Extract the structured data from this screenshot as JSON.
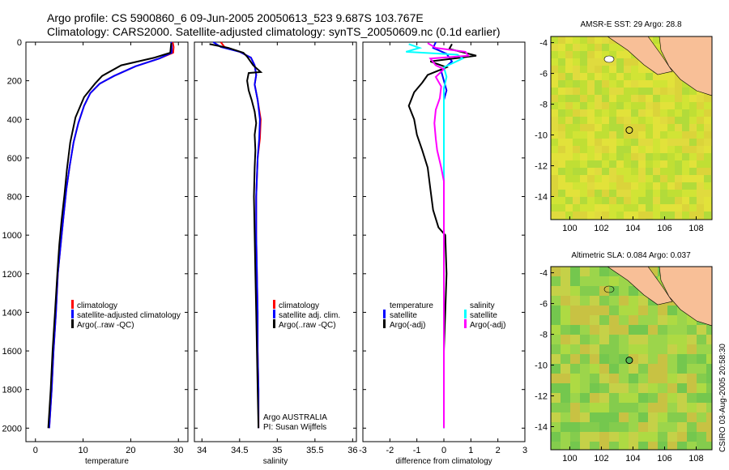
{
  "title": {
    "line1": "Argo profile: CS 5900860_6 09-Jun-2005 20050613_523 9.687S 103.767E",
    "line2": "Climatology: CARS2000. Satellite-adjusted climatology: synTS_20050609.nc (0.1d earlier)"
  },
  "depth_ticks": [
    "0",
    "200",
    "400",
    "600",
    "800",
    "1000",
    "1200",
    "1400",
    "1600",
    "1800",
    "2000"
  ],
  "credit": "CSIRO 03-Aug-2005 20:58:30",
  "chart_data": [
    {
      "type": "line",
      "id": "temperature",
      "xlabel": "temperature",
      "xlim": [
        -2,
        32
      ],
      "ylim": [
        2070,
        0
      ],
      "xticks": [
        "0",
        "10",
        "20",
        "30"
      ],
      "legend": [
        "climatology",
        "satellite-adjusted climatology",
        "Argo(..raw -QC)"
      ],
      "series": [
        {
          "name": "climatology",
          "color": "#ff0000",
          "points": [
            [
              28.8,
              0
            ],
            [
              29.0,
              25
            ],
            [
              28.9,
              55
            ],
            [
              26,
              85
            ],
            [
              21,
              125
            ],
            [
              16.5,
              175
            ],
            [
              13.5,
              215
            ],
            [
              11.5,
              265
            ],
            [
              10.2,
              330
            ],
            [
              9,
              420
            ],
            [
              8,
              520
            ],
            [
              7.2,
              640
            ],
            [
              6.5,
              760
            ],
            [
              5.9,
              900
            ],
            [
              5.3,
              1050
            ],
            [
              4.7,
              1200
            ],
            [
              4.3,
              1400
            ],
            [
              3.8,
              1600
            ],
            [
              3.4,
              1800
            ],
            [
              2.9,
              2000
            ]
          ]
        },
        {
          "name": "satellite-adjusted climatology",
          "color": "#0000ff",
          "points": [
            [
              28.5,
              0
            ],
            [
              28.6,
              25
            ],
            [
              28.6,
              55
            ],
            [
              26,
              85
            ],
            [
              21,
              125
            ],
            [
              16.5,
              175
            ],
            [
              13.5,
              215
            ],
            [
              11.5,
              265
            ],
            [
              10.2,
              330
            ],
            [
              9,
              420
            ],
            [
              8,
              520
            ],
            [
              7.2,
              640
            ],
            [
              6.5,
              760
            ],
            [
              5.9,
              900
            ],
            [
              5.3,
              1050
            ],
            [
              4.7,
              1200
            ],
            [
              4.3,
              1400
            ],
            [
              3.8,
              1600
            ],
            [
              3.4,
              1800
            ],
            [
              2.9,
              2000
            ]
          ]
        },
        {
          "name": "Argo(..raw -QC)",
          "color": "#000000",
          "points": [
            [
              28.5,
              5
            ],
            [
              28.4,
              30
            ],
            [
              28.3,
              55
            ],
            [
              25,
              80
            ],
            [
              18,
              120
            ],
            [
              14,
              175
            ],
            [
              12.5,
              215
            ],
            [
              10.2,
              285
            ],
            [
              8.4,
              390
            ],
            [
              7.3,
              520
            ],
            [
              6.6,
              660
            ],
            [
              6.1,
              790
            ],
            [
              5.5,
              920
            ],
            [
              5,
              1050
            ],
            [
              4.6,
              1200
            ],
            [
              4.1,
              1400
            ],
            [
              3.6,
              1600
            ],
            [
              3.2,
              1800
            ],
            [
              2.7,
              2000
            ]
          ]
        }
      ]
    },
    {
      "type": "line",
      "id": "salinity",
      "xlabel": "salinity",
      "xlim": [
        33.9,
        36.05
      ],
      "ylim": [
        2070,
        0
      ],
      "xticks": [
        "34",
        "34.5",
        "35",
        "35.5",
        "36"
      ],
      "legend": [
        "climatology",
        "satellite adj. clim.",
        "Argo(..raw -QC)"
      ],
      "annotation": [
        "Argo AUSTRALIA",
        "PI: Susan Wijffels"
      ],
      "series": [
        {
          "name": "climatology",
          "color": "#ff0000",
          "points": [
            [
              34.25,
              0
            ],
            [
              34.3,
              25
            ],
            [
              34.5,
              50
            ],
            [
              34.65,
              80
            ],
            [
              34.7,
              120
            ],
            [
              34.72,
              170
            ],
            [
              34.7,
              220
            ],
            [
              34.74,
              300
            ],
            [
              34.78,
              400
            ],
            [
              34.77,
              500
            ],
            [
              34.74,
              600
            ],
            [
              34.73,
              700
            ],
            [
              34.72,
              800
            ],
            [
              34.72,
              1000
            ],
            [
              34.73,
              1200
            ],
            [
              34.74,
              1400
            ],
            [
              34.74,
              1600
            ],
            [
              34.75,
              1800
            ],
            [
              34.75,
              2000
            ]
          ]
        },
        {
          "name": "satellite adj. clim.",
          "color": "#0000ff",
          "points": [
            [
              34.15,
              0
            ],
            [
              34.25,
              25
            ],
            [
              34.5,
              50
            ],
            [
              34.65,
              80
            ],
            [
              34.7,
              120
            ],
            [
              34.72,
              170
            ],
            [
              34.7,
              220
            ],
            [
              34.74,
              300
            ],
            [
              34.77,
              400
            ],
            [
              34.76,
              500
            ],
            [
              34.74,
              600
            ],
            [
              34.73,
              700
            ],
            [
              34.72,
              800
            ],
            [
              34.72,
              1000
            ],
            [
              34.73,
              1200
            ],
            [
              34.74,
              1400
            ],
            [
              34.74,
              1600
            ],
            [
              34.75,
              1800
            ],
            [
              34.75,
              2000
            ]
          ]
        },
        {
          "name": "Argo(..raw -QC)",
          "color": "#000000",
          "points": [
            [
              34.1,
              10
            ],
            [
              34.35,
              30
            ],
            [
              34.55,
              55
            ],
            [
              34.6,
              75
            ],
            [
              34.68,
              120
            ],
            [
              34.78,
              155
            ],
            [
              34.62,
              160
            ],
            [
              34.6,
              200
            ],
            [
              34.62,
              250
            ],
            [
              34.66,
              300
            ],
            [
              34.7,
              360
            ],
            [
              34.72,
              420
            ],
            [
              34.7,
              480
            ],
            [
              34.71,
              560
            ],
            [
              34.7,
              650
            ],
            [
              34.69,
              800
            ],
            [
              34.7,
              1000
            ],
            [
              34.71,
              1200
            ],
            [
              34.72,
              1400
            ],
            [
              34.73,
              1600
            ],
            [
              34.74,
              1800
            ],
            [
              34.75,
              2000
            ]
          ]
        }
      ]
    },
    {
      "type": "line",
      "id": "difference",
      "xlabel": "difference from climatology",
      "xlim": [
        -3,
        3
      ],
      "ylim": [
        2070,
        0
      ],
      "xticks": [
        "-3",
        "-2",
        "-1",
        "0",
        "1",
        "2",
        "3"
      ],
      "legend_left": [
        "temperature",
        "satellite",
        "Argo(-adj)"
      ],
      "legend_right": [
        "salinity",
        "satellite",
        "Argo(-adj)"
      ],
      "series": [
        {
          "name": "temperature satellite",
          "color": "#0000ff",
          "points": [
            [
              -0.3,
              0
            ],
            [
              -0.4,
              30
            ],
            [
              0.1,
              60
            ],
            [
              0.3,
              100
            ],
            [
              -0.1,
              150
            ],
            [
              0,
              200
            ],
            [
              0.1,
              250
            ],
            [
              0,
              300
            ],
            [
              0,
              400
            ],
            [
              0,
              600
            ],
            [
              0,
              800
            ],
            [
              0,
              1000
            ],
            [
              0,
              1400
            ],
            [
              0,
              2000
            ]
          ]
        },
        {
          "name": "temperature Argo(-adj)",
          "color": "#000000",
          "points": [
            [
              0.3,
              10
            ],
            [
              0.2,
              35
            ],
            [
              1.2,
              70
            ],
            [
              -0.5,
              100
            ],
            [
              0.1,
              130
            ],
            [
              -0.6,
              170
            ],
            [
              -0.8,
              210
            ],
            [
              -1.1,
              260
            ],
            [
              -1.3,
              330
            ],
            [
              -1.1,
              400
            ],
            [
              -1.0,
              480
            ],
            [
              -0.8,
              560
            ],
            [
              -0.6,
              650
            ],
            [
              -0.5,
              760
            ],
            [
              -0.4,
              870
            ],
            [
              -0.2,
              960
            ],
            [
              0.05,
              1000
            ],
            [
              0.1,
              1200
            ],
            [
              0.05,
              1400
            ],
            [
              0,
              1600
            ],
            [
              0,
              1800
            ],
            [
              0,
              2000
            ]
          ]
        },
        {
          "name": "salinity satellite",
          "color": "#00ffff",
          "points": [
            [
              -1.3,
              10
            ],
            [
              -0.9,
              30
            ],
            [
              -1.4,
              50
            ],
            [
              0.5,
              65
            ],
            [
              0.7,
              85
            ],
            [
              0,
              130
            ],
            [
              0.1,
              180
            ],
            [
              0,
              240
            ],
            [
              0,
              400
            ],
            [
              0,
              600
            ],
            [
              0,
              800
            ],
            [
              0,
              1000
            ],
            [
              0,
              1400
            ],
            [
              0,
              2000
            ]
          ]
        },
        {
          "name": "salinity Argo(-adj)",
          "color": "#ff00ff",
          "points": [
            [
              -0.6,
              5
            ],
            [
              -0.3,
              30
            ],
            [
              0.8,
              50
            ],
            [
              0.9,
              70
            ],
            [
              -0.5,
              85
            ],
            [
              -0.3,
              120
            ],
            [
              0,
              140
            ],
            [
              -0.3,
              180
            ],
            [
              -0.1,
              230
            ],
            [
              -0.15,
              290
            ],
            [
              -0.3,
              350
            ],
            [
              -0.35,
              420
            ],
            [
              -0.3,
              500
            ],
            [
              -0.25,
              560
            ],
            [
              -0.1,
              650
            ],
            [
              0,
              720
            ],
            [
              0,
              800
            ],
            [
              0,
              1000
            ],
            [
              0,
              1400
            ],
            [
              0,
              2000
            ]
          ]
        }
      ]
    },
    {
      "type": "heatmap",
      "id": "sst_map",
      "title": "AMSR-E SST: 29 Argo: 28.8",
      "xlim": [
        98.8,
        109
      ],
      "ylim": [
        -15.5,
        -3.6
      ],
      "xticks": [
        "100",
        "102",
        "104",
        "106",
        "108"
      ],
      "yticks": [
        "-4",
        "-6",
        "-8",
        "-10",
        "-12",
        "-14"
      ],
      "marker": [
        103.767,
        -9.687
      ]
    },
    {
      "type": "heatmap",
      "id": "sla_map",
      "title": "Altimetric SLA: 0.084 Argo: 0.037",
      "xlim": [
        98.8,
        109
      ],
      "ylim": [
        -15.5,
        -3.6
      ],
      "xticks": [
        "100",
        "102",
        "104",
        "106",
        "108"
      ],
      "yticks": [
        "-4",
        "-6",
        "-8",
        "-10",
        "-12",
        "-14"
      ],
      "marker": [
        103.767,
        -9.687
      ]
    }
  ]
}
